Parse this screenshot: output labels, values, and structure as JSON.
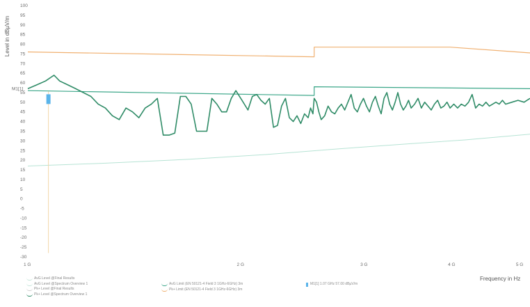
{
  "chart_data": {
    "type": "line",
    "ylabel": "Level in dBµV/m",
    "xlabel": "Frequency in Hz",
    "xscale": "log",
    "ylim": [
      -30,
      100
    ],
    "y_ticks": [
      "-30",
      "-25",
      "-20",
      "-15",
      "-10",
      "-5",
      "0",
      "5",
      "10",
      "15",
      "20",
      "25",
      "30",
      "35",
      "40",
      "45",
      "50",
      "55",
      "60",
      "65",
      "70",
      "75",
      "80",
      "85",
      "90",
      "95",
      "100"
    ],
    "x_ticks": [
      "1 G",
      "2 G",
      "3 G",
      "4 G",
      "5 G"
    ],
    "legend_placement": "bottom",
    "series": [
      {
        "name": "AvG Level (EN 50121-4 Field 3 1GHz-6GHz) 3m",
        "color": "#f0b070",
        "style": "step",
        "points": [
          [
            1.0,
            76
          ],
          [
            2.56,
            73.5
          ],
          [
            2.56,
            78.5
          ],
          [
            4.0,
            78.5
          ],
          [
            5.2,
            75.5
          ]
        ]
      },
      {
        "name": "Pk+ Limit (EN 50121-4 Field 3 1GHz-6GHz) 3m",
        "color": "#3aa688",
        "style": "step",
        "points": [
          [
            1.0,
            56
          ],
          [
            2.56,
            53.5
          ],
          [
            2.56,
            58
          ],
          [
            5.2,
            57
          ]
        ]
      },
      {
        "name": "AvG Level @Spectrum Overview 1",
        "color": "#b6e3d4",
        "style": "line",
        "points": [
          [
            1.0,
            17
          ],
          [
            1.3,
            18.5
          ],
          [
            1.7,
            20.5
          ],
          [
            2.2,
            23
          ],
          [
            2.8,
            26
          ],
          [
            3.5,
            28.5
          ],
          [
            4.2,
            30.5
          ],
          [
            5.2,
            33.5
          ]
        ]
      },
      {
        "name": "Pk+ Level @Spectrum Overview 1",
        "color": "#2e8b66",
        "style": "line",
        "points": [
          [
            1.0,
            57
          ],
          [
            1.03,
            59
          ],
          [
            1.06,
            61
          ],
          [
            1.09,
            64
          ],
          [
            1.11,
            61
          ],
          [
            1.14,
            59
          ],
          [
            1.17,
            57
          ],
          [
            1.2,
            55
          ],
          [
            1.23,
            53
          ],
          [
            1.26,
            49
          ],
          [
            1.29,
            47
          ],
          [
            1.32,
            43
          ],
          [
            1.35,
            41
          ],
          [
            1.38,
            47
          ],
          [
            1.41,
            45
          ],
          [
            1.44,
            42
          ],
          [
            1.47,
            47
          ],
          [
            1.5,
            49
          ],
          [
            1.53,
            52
          ],
          [
            1.56,
            33
          ],
          [
            1.59,
            33
          ],
          [
            1.62,
            34
          ],
          [
            1.65,
            53
          ],
          [
            1.68,
            53
          ],
          [
            1.71,
            49
          ],
          [
            1.74,
            35
          ],
          [
            1.77,
            35
          ],
          [
            1.8,
            35
          ],
          [
            1.83,
            52
          ],
          [
            1.86,
            49
          ],
          [
            1.89,
            45
          ],
          [
            1.92,
            45
          ],
          [
            1.95,
            52
          ],
          [
            1.98,
            56
          ],
          [
            2.02,
            51
          ],
          [
            2.06,
            46
          ],
          [
            2.09,
            53
          ],
          [
            2.12,
            54
          ],
          [
            2.15,
            51
          ],
          [
            2.18,
            49
          ],
          [
            2.21,
            52
          ],
          [
            2.24,
            37
          ],
          [
            2.27,
            38
          ],
          [
            2.3,
            48
          ],
          [
            2.33,
            52
          ],
          [
            2.36,
            42
          ],
          [
            2.39,
            40
          ],
          [
            2.42,
            43
          ],
          [
            2.45,
            39
          ],
          [
            2.48,
            44
          ],
          [
            2.51,
            42
          ],
          [
            2.53,
            47
          ],
          [
            2.55,
            44
          ],
          [
            2.56,
            52
          ],
          [
            2.58,
            50
          ],
          [
            2.6,
            45
          ],
          [
            2.62,
            41
          ],
          [
            2.65,
            43
          ],
          [
            2.68,
            48
          ],
          [
            2.71,
            45
          ],
          [
            2.74,
            44
          ],
          [
            2.77,
            47
          ],
          [
            2.8,
            49
          ],
          [
            2.83,
            46
          ],
          [
            2.86,
            50
          ],
          [
            2.89,
            54
          ],
          [
            2.92,
            47
          ],
          [
            2.95,
            45
          ],
          [
            2.98,
            49
          ],
          [
            3.01,
            52
          ],
          [
            3.04,
            48
          ],
          [
            3.07,
            45
          ],
          [
            3.1,
            50
          ],
          [
            3.13,
            53
          ],
          [
            3.16,
            48
          ],
          [
            3.19,
            44
          ],
          [
            3.22,
            52
          ],
          [
            3.25,
            55
          ],
          [
            3.28,
            49
          ],
          [
            3.31,
            46
          ],
          [
            3.34,
            50
          ],
          [
            3.37,
            55
          ],
          [
            3.4,
            49
          ],
          [
            3.43,
            46
          ],
          [
            3.46,
            48
          ],
          [
            3.49,
            51
          ],
          [
            3.52,
            47
          ],
          [
            3.56,
            49
          ],
          [
            3.6,
            52
          ],
          [
            3.64,
            47
          ],
          [
            3.68,
            50
          ],
          [
            3.72,
            48
          ],
          [
            3.76,
            46
          ],
          [
            3.8,
            49
          ],
          [
            3.84,
            51
          ],
          [
            3.88,
            47
          ],
          [
            3.92,
            48
          ],
          [
            3.96,
            50
          ],
          [
            4.0,
            47
          ],
          [
            4.05,
            49
          ],
          [
            4.1,
            47
          ],
          [
            4.15,
            49
          ],
          [
            4.2,
            48
          ],
          [
            4.25,
            50
          ],
          [
            4.3,
            54
          ],
          [
            4.35,
            47
          ],
          [
            4.4,
            49
          ],
          [
            4.45,
            48
          ],
          [
            4.5,
            50
          ],
          [
            4.55,
            48
          ],
          [
            4.6,
            49
          ],
          [
            4.65,
            50
          ],
          [
            4.7,
            49
          ],
          [
            4.75,
            51
          ],
          [
            4.8,
            49
          ],
          [
            4.9,
            50
          ],
          [
            5.0,
            51
          ],
          [
            5.1,
            50
          ],
          [
            5.2,
            52
          ]
        ]
      }
    ],
    "marker": {
      "label": "M1[1]",
      "freq": 1.07,
      "level": 57,
      "color": "#5ab4ea"
    }
  },
  "legend": {
    "left": [
      {
        "text": "AvG Level @Final Results",
        "color": "#c8e6dc"
      },
      {
        "text": "AvG Level @Spectrum Overview 1",
        "color": "#c8e6dc"
      },
      {
        "text": "Pk+ Level @Final Results",
        "color": "#cfcfcf"
      },
      {
        "text": "Pk+ Level @Spectrum Overview 1",
        "color": "#2e8b66"
      }
    ],
    "middle": [
      {
        "text": "AvG Limit (EN 50121-4 Field 3 1GHz-6GHz) 3m",
        "color": "#3aa688"
      },
      {
        "text": "Pk+ Limit (EN 50121-4 Field 3 1GHz-6GHz) 3m",
        "color": "#f0b070"
      }
    ],
    "marker": {
      "text": "M1[1] 1.07 GHz 57.00 dBµV/m",
      "color": "#5ab4ea"
    }
  }
}
